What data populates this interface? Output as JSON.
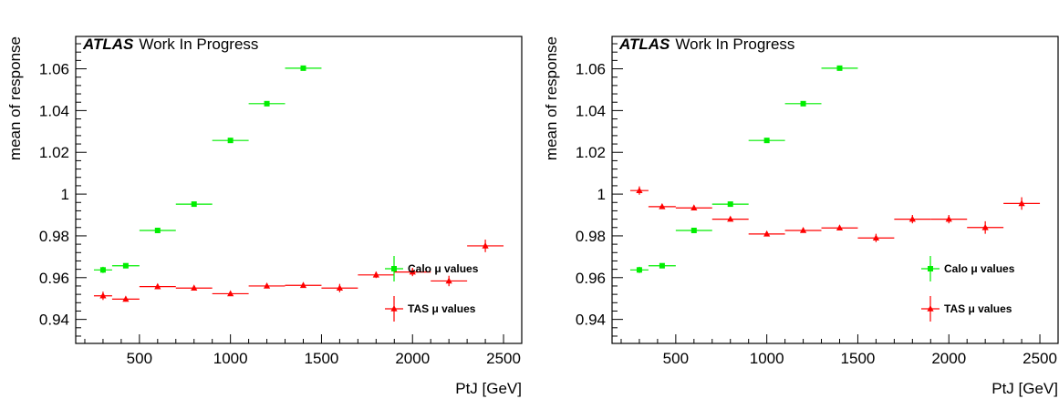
{
  "chart_data": [
    {
      "type": "scatter",
      "title_logo": "ATLAS",
      "title": "Work In Progress",
      "xlabel": "PtJ [GeV]",
      "ylabel": "mean of response",
      "xlim": [
        150,
        2600
      ],
      "ylim": [
        0.9285,
        1.0755
      ],
      "xticks": [
        500,
        1000,
        1500,
        2000,
        2500
      ],
      "yticks": [
        0.94,
        0.96,
        0.98,
        1.0,
        1.02,
        1.04,
        1.06
      ],
      "ytick_labels": [
        "0.94",
        "0.96",
        "0.98",
        "1",
        "1.02",
        "1.04",
        "1.06"
      ],
      "legend_position": "bottom-right",
      "series": [
        {
          "name": "Calo μ values",
          "color": "#00ee00",
          "marker": "square",
          "points": [
            {
              "x": 300,
              "xerr": 50,
              "y": 0.9637,
              "yerr": 0.0015
            },
            {
              "x": 425,
              "xerr": 75,
              "y": 0.9657,
              "yerr": 0.0012
            },
            {
              "x": 600,
              "xerr": 100,
              "y": 0.9826,
              "yerr": 0.0012
            },
            {
              "x": 800,
              "xerr": 100,
              "y": 0.9952,
              "yerr": 0.001
            },
            {
              "x": 1000,
              "xerr": 100,
              "y": 1.0257,
              "yerr": 0.0012
            },
            {
              "x": 1200,
              "xerr": 100,
              "y": 1.0433,
              "yerr": 0.001
            },
            {
              "x": 1400,
              "xerr": 100,
              "y": 1.0603,
              "yerr": 0.001
            }
          ]
        },
        {
          "name": "TAS μ values",
          "color": "#ff0000",
          "marker": "triangle",
          "points": [
            {
              "x": 300,
              "xerr": 50,
              "y": 0.9513,
              "yerr": 0.002
            },
            {
              "x": 425,
              "xerr": 75,
              "y": 0.9497,
              "yerr": 0.0012
            },
            {
              "x": 600,
              "xerr": 100,
              "y": 0.9557,
              "yerr": 0.001
            },
            {
              "x": 800,
              "xerr": 100,
              "y": 0.955,
              "yerr": 0.001
            },
            {
              "x": 1000,
              "xerr": 100,
              "y": 0.9523,
              "yerr": 0.001
            },
            {
              "x": 1200,
              "xerr": 100,
              "y": 0.956,
              "yerr": 0.001
            },
            {
              "x": 1400,
              "xerr": 100,
              "y": 0.9563,
              "yerr": 0.001
            },
            {
              "x": 1600,
              "xerr": 100,
              "y": 0.955,
              "yerr": 0.002
            },
            {
              "x": 1800,
              "xerr": 100,
              "y": 0.9613,
              "yerr": 0.0015
            },
            {
              "x": 2000,
              "xerr": 100,
              "y": 0.9627,
              "yerr": 0.002
            },
            {
              "x": 2200,
              "xerr": 100,
              "y": 0.9584,
              "yerr": 0.0025
            },
            {
              "x": 2400,
              "xerr": 100,
              "y": 0.9752,
              "yerr": 0.003
            }
          ]
        }
      ]
    },
    {
      "type": "scatter",
      "title_logo": "ATLAS",
      "title": "Work In Progress",
      "xlabel": "PtJ [GeV]",
      "ylabel": "mean of response",
      "xlim": [
        150,
        2600
      ],
      "ylim": [
        0.9285,
        1.0755
      ],
      "xticks": [
        500,
        1000,
        1500,
        2000,
        2500
      ],
      "yticks": [
        0.94,
        0.96,
        0.98,
        1.0,
        1.02,
        1.04,
        1.06
      ],
      "ytick_labels": [
        "0.94",
        "0.96",
        "0.98",
        "1",
        "1.02",
        "1.04",
        "1.06"
      ],
      "legend_position": "bottom-right",
      "series": [
        {
          "name": "Calo μ values",
          "color": "#00ee00",
          "marker": "square",
          "points": [
            {
              "x": 300,
              "xerr": 50,
              "y": 0.9637,
              "yerr": 0.0015
            },
            {
              "x": 425,
              "xerr": 75,
              "y": 0.9657,
              "yerr": 0.0012
            },
            {
              "x": 600,
              "xerr": 100,
              "y": 0.9826,
              "yerr": 0.0012
            },
            {
              "x": 800,
              "xerr": 100,
              "y": 0.9952,
              "yerr": 0.001
            },
            {
              "x": 1000,
              "xerr": 100,
              "y": 1.0257,
              "yerr": 0.0012
            },
            {
              "x": 1200,
              "xerr": 100,
              "y": 1.0433,
              "yerr": 0.001
            },
            {
              "x": 1400,
              "xerr": 100,
              "y": 1.0603,
              "yerr": 0.001
            }
          ]
        },
        {
          "name": "TAS μ values",
          "color": "#ff0000",
          "marker": "triangle",
          "points": [
            {
              "x": 300,
              "xerr": 50,
              "y": 1.0017,
              "yerr": 0.002
            },
            {
              "x": 425,
              "xerr": 75,
              "y": 0.994,
              "yerr": 0.001
            },
            {
              "x": 600,
              "xerr": 100,
              "y": 0.9934,
              "yerr": 0.001
            },
            {
              "x": 800,
              "xerr": 100,
              "y": 0.988,
              "yerr": 0.001
            },
            {
              "x": 1000,
              "xerr": 100,
              "y": 0.9809,
              "yerr": 0.001
            },
            {
              "x": 1200,
              "xerr": 100,
              "y": 0.9826,
              "yerr": 0.001
            },
            {
              "x": 1400,
              "xerr": 100,
              "y": 0.9838,
              "yerr": 0.001
            },
            {
              "x": 1600,
              "xerr": 100,
              "y": 0.979,
              "yerr": 0.002
            },
            {
              "x": 1800,
              "xerr": 100,
              "y": 0.988,
              "yerr": 0.002
            },
            {
              "x": 2000,
              "xerr": 100,
              "y": 0.988,
              "yerr": 0.002
            },
            {
              "x": 2200,
              "xerr": 100,
              "y": 0.984,
              "yerr": 0.003
            },
            {
              "x": 2400,
              "xerr": 100,
              "y": 0.9955,
              "yerr": 0.003
            }
          ]
        }
      ]
    }
  ]
}
